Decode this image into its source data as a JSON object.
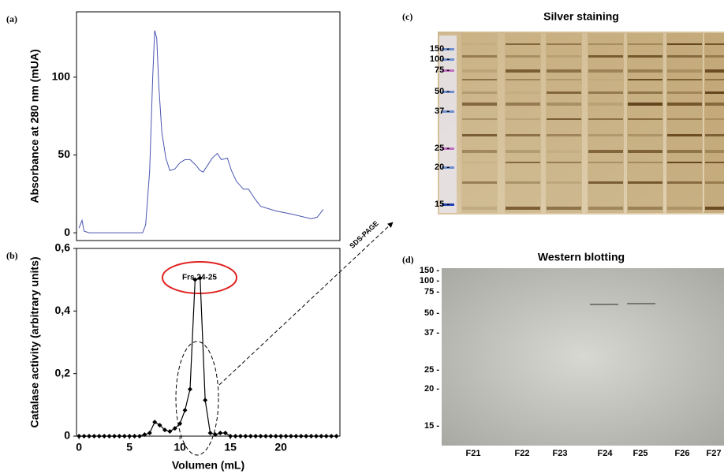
{
  "chart_data": [
    {
      "type": "line",
      "panel_label": "(a)",
      "ylabel": "Absorbance at 280 nm (mUA)",
      "xlim": [
        -0.25,
        25.85
      ],
      "ylim": [
        -5,
        142
      ],
      "yticks": [
        0,
        50,
        100
      ],
      "x": [
        0,
        0.3,
        0.5,
        1,
        6.3,
        6.6,
        7.0,
        7.3,
        7.5,
        7.7,
        7.9,
        8.2,
        8.6,
        9.0,
        9.5,
        10.0,
        10.5,
        11.0,
        11.5,
        12.0,
        12.3,
        12.7,
        13.2,
        13.7,
        14.1,
        14.7,
        15.1,
        15.6,
        16.3,
        16.8,
        17.4,
        18.0,
        19.5,
        21.1,
        23.0,
        23.6,
        24.2
      ],
      "series": [
        {
          "color": "#4a55b0",
          "values": [
            3,
            8,
            1,
            0,
            0,
            5,
            40,
            100,
            130,
            125,
            95,
            65,
            48,
            40,
            41,
            45,
            47,
            47,
            44,
            40,
            39,
            43,
            48,
            51,
            47,
            48,
            40,
            33,
            28,
            28,
            22,
            17,
            14,
            12,
            9,
            10,
            15
          ]
        }
      ]
    },
    {
      "type": "line",
      "panel_label": "(b)",
      "xlabel": "Volumen (mL)",
      "ylabel": "Catalase activity (arbitrary units)",
      "xlim": [
        -0.25,
        25.85
      ],
      "ylim": [
        0,
        0.6
      ],
      "xticks": [
        0,
        5,
        10,
        15,
        20
      ],
      "yticks": [
        0,
        {
          "value": 0.2,
          "label": "0,2"
        },
        {
          "value": 0.4,
          "label": "0,4"
        },
        {
          "value": 0.6,
          "label": "0,6"
        }
      ],
      "markers": true,
      "annotations": [
        "Frs.24-25",
        "SDS-PAGE"
      ],
      "x": [
        0,
        0.5,
        1,
        1.5,
        2,
        2.5,
        3,
        3.5,
        4,
        4.5,
        5,
        5.5,
        6,
        6.5,
        7,
        7.5,
        8,
        8.5,
        9,
        9.5,
        10,
        10.5,
        11,
        11.5,
        12,
        12.5,
        13,
        13.5,
        14,
        14.5,
        15,
        15.5,
        16,
        16.5,
        17,
        17.5,
        18,
        18.5,
        19,
        19.5,
        20,
        20.5,
        21,
        21.5,
        22,
        22.5,
        23,
        23.5,
        24,
        24.5,
        25,
        25.5
      ],
      "series": [
        {
          "color": "#000000",
          "values": [
            0,
            0,
            0,
            0,
            0,
            0,
            0,
            0,
            0,
            0,
            0,
            0,
            0,
            0.005,
            0.01,
            0.045,
            0.035,
            0.02,
            0.015,
            0.025,
            0.04,
            0.083,
            0.15,
            0.5,
            0.505,
            0.115,
            0.01,
            0.005,
            0.01,
            0.01,
            0,
            0,
            0,
            0,
            0,
            0,
            0,
            0,
            0,
            0,
            0,
            0,
            0,
            0,
            0,
            0,
            0,
            0,
            0,
            0,
            0,
            0
          ]
        }
      ]
    }
  ],
  "gels": [
    {
      "panel_label": "(c)",
      "title": "Silver staining",
      "markers": [
        "150 -",
        "100 -",
        "75 -",
        "50 -",
        "37 -",
        "25 -",
        "20 -",
        "15 -"
      ]
    },
    {
      "panel_label": "(d)",
      "title": "Western blotting",
      "markers": [
        "150 -",
        "100 -",
        "75 -",
        "50 -",
        "37 -",
        "25 -",
        "20 -",
        "15 -"
      ],
      "lanes": [
        "F21",
        "F22",
        "F23",
        "F24",
        "F25",
        "F26",
        "F27"
      ]
    }
  ]
}
